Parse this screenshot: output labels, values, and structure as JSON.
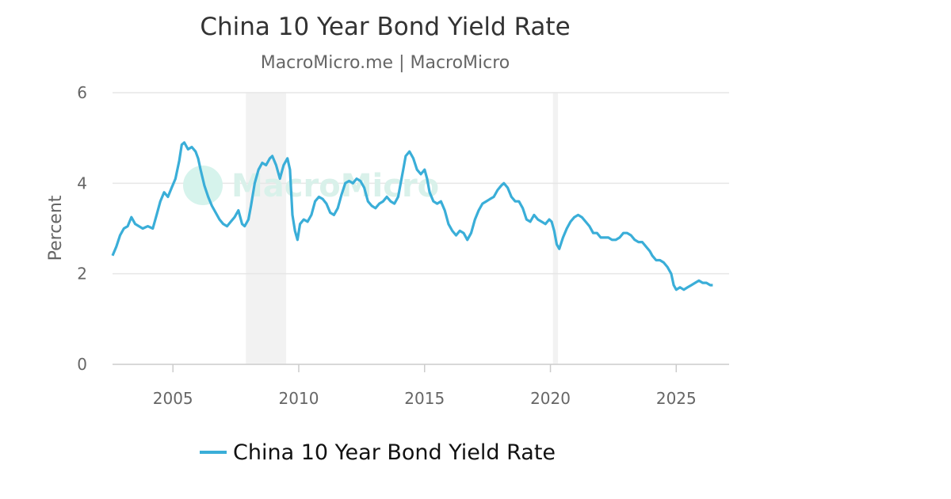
{
  "colors": {
    "series": "#3aaed8",
    "grid": "#e6e6e6",
    "recession": "#f2f2f2",
    "axis_line": "#cccccc",
    "watermark_circle": "#d6f3ec"
  },
  "watermark": {
    "text": "MacroMicro",
    "icon": "macromicro-logo-icon"
  },
  "chart_data": {
    "type": "line",
    "title": "China 10 Year Bond Yield Rate",
    "subtitle": "MacroMicro.me | MacroMicro",
    "xlabel": "",
    "ylabel": "Percent",
    "xlim": [
      2002.6,
      2027.1
    ],
    "ylim": [
      0,
      6
    ],
    "x_ticks": [
      2005,
      2010,
      2015,
      2020,
      2025
    ],
    "y_ticks": [
      0,
      2,
      4,
      6
    ],
    "grid": true,
    "legend_position": "bottom",
    "shaded_periods": [
      [
        2007.9,
        2009.5
      ],
      [
        2020.1,
        2020.3
      ]
    ],
    "series": [
      {
        "name": "China 10 Year Bond Yield Rate",
        "points": [
          [
            2002.6,
            2.4
          ],
          [
            2002.75,
            2.6
          ],
          [
            2002.9,
            2.85
          ],
          [
            2003.05,
            3.0
          ],
          [
            2003.2,
            3.05
          ],
          [
            2003.35,
            3.25
          ],
          [
            2003.5,
            3.1
          ],
          [
            2003.65,
            3.05
          ],
          [
            2003.8,
            3.0
          ],
          [
            2004.0,
            3.05
          ],
          [
            2004.2,
            3.0
          ],
          [
            2004.35,
            3.3
          ],
          [
            2004.5,
            3.6
          ],
          [
            2004.65,
            3.8
          ],
          [
            2004.8,
            3.7
          ],
          [
            2004.95,
            3.9
          ],
          [
            2005.1,
            4.1
          ],
          [
            2005.25,
            4.5
          ],
          [
            2005.35,
            4.85
          ],
          [
            2005.45,
            4.9
          ],
          [
            2005.6,
            4.75
          ],
          [
            2005.75,
            4.8
          ],
          [
            2005.9,
            4.7
          ],
          [
            2006.0,
            4.55
          ],
          [
            2006.1,
            4.3
          ],
          [
            2006.25,
            3.95
          ],
          [
            2006.4,
            3.7
          ],
          [
            2006.55,
            3.5
          ],
          [
            2006.7,
            3.35
          ],
          [
            2006.85,
            3.2
          ],
          [
            2007.0,
            3.1
          ],
          [
            2007.15,
            3.05
          ],
          [
            2007.3,
            3.15
          ],
          [
            2007.45,
            3.25
          ],
          [
            2007.6,
            3.4
          ],
          [
            2007.75,
            3.1
          ],
          [
            2007.85,
            3.05
          ],
          [
            2008.0,
            3.2
          ],
          [
            2008.1,
            3.5
          ],
          [
            2008.25,
            4.0
          ],
          [
            2008.4,
            4.3
          ],
          [
            2008.55,
            4.45
          ],
          [
            2008.7,
            4.4
          ],
          [
            2008.85,
            4.55
          ],
          [
            2008.95,
            4.6
          ],
          [
            2009.1,
            4.4
          ],
          [
            2009.25,
            4.1
          ],
          [
            2009.4,
            4.4
          ],
          [
            2009.55,
            4.55
          ],
          [
            2009.65,
            4.3
          ],
          [
            2009.75,
            3.3
          ],
          [
            2009.85,
            2.95
          ],
          [
            2009.95,
            2.75
          ],
          [
            2010.05,
            3.1
          ],
          [
            2010.2,
            3.2
          ],
          [
            2010.35,
            3.15
          ],
          [
            2010.5,
            3.3
          ],
          [
            2010.65,
            3.6
          ],
          [
            2010.8,
            3.7
          ],
          [
            2010.95,
            3.65
          ],
          [
            2011.1,
            3.55
          ],
          [
            2011.25,
            3.35
          ],
          [
            2011.4,
            3.3
          ],
          [
            2011.55,
            3.45
          ],
          [
            2011.7,
            3.75
          ],
          [
            2011.85,
            4.0
          ],
          [
            2012.0,
            4.05
          ],
          [
            2012.15,
            4.0
          ],
          [
            2012.3,
            4.1
          ],
          [
            2012.45,
            4.05
          ],
          [
            2012.6,
            3.9
          ],
          [
            2012.75,
            3.6
          ],
          [
            2012.9,
            3.5
          ],
          [
            2013.05,
            3.45
          ],
          [
            2013.2,
            3.55
          ],
          [
            2013.35,
            3.6
          ],
          [
            2013.5,
            3.7
          ],
          [
            2013.65,
            3.6
          ],
          [
            2013.8,
            3.55
          ],
          [
            2013.95,
            3.7
          ],
          [
            2014.05,
            4.0
          ],
          [
            2014.15,
            4.3
          ],
          [
            2014.25,
            4.6
          ],
          [
            2014.4,
            4.7
          ],
          [
            2014.55,
            4.55
          ],
          [
            2014.7,
            4.3
          ],
          [
            2014.85,
            4.2
          ],
          [
            2015.0,
            4.3
          ],
          [
            2015.1,
            4.1
          ],
          [
            2015.2,
            3.8
          ],
          [
            2015.35,
            3.6
          ],
          [
            2015.5,
            3.55
          ],
          [
            2015.65,
            3.6
          ],
          [
            2015.8,
            3.4
          ],
          [
            2015.95,
            3.1
          ],
          [
            2016.1,
            2.95
          ],
          [
            2016.25,
            2.85
          ],
          [
            2016.4,
            2.95
          ],
          [
            2016.55,
            2.9
          ],
          [
            2016.7,
            2.75
          ],
          [
            2016.85,
            2.9
          ],
          [
            2017.0,
            3.2
          ],
          [
            2017.15,
            3.4
          ],
          [
            2017.3,
            3.55
          ],
          [
            2017.45,
            3.6
          ],
          [
            2017.6,
            3.65
          ],
          [
            2017.75,
            3.7
          ],
          [
            2017.9,
            3.85
          ],
          [
            2018.05,
            3.95
          ],
          [
            2018.15,
            4.0
          ],
          [
            2018.3,
            3.9
          ],
          [
            2018.45,
            3.7
          ],
          [
            2018.6,
            3.6
          ],
          [
            2018.75,
            3.6
          ],
          [
            2018.9,
            3.45
          ],
          [
            2019.05,
            3.2
          ],
          [
            2019.2,
            3.15
          ],
          [
            2019.35,
            3.3
          ],
          [
            2019.5,
            3.2
          ],
          [
            2019.65,
            3.15
          ],
          [
            2019.8,
            3.1
          ],
          [
            2019.95,
            3.2
          ],
          [
            2020.05,
            3.15
          ],
          [
            2020.15,
            2.95
          ],
          [
            2020.25,
            2.65
          ],
          [
            2020.35,
            2.55
          ],
          [
            2020.5,
            2.8
          ],
          [
            2020.65,
            3.0
          ],
          [
            2020.8,
            3.15
          ],
          [
            2020.95,
            3.25
          ],
          [
            2021.1,
            3.3
          ],
          [
            2021.25,
            3.25
          ],
          [
            2021.4,
            3.15
          ],
          [
            2021.55,
            3.05
          ],
          [
            2021.7,
            2.9
          ],
          [
            2021.85,
            2.9
          ],
          [
            2022.0,
            2.8
          ],
          [
            2022.15,
            2.8
          ],
          [
            2022.3,
            2.8
          ],
          [
            2022.45,
            2.75
          ],
          [
            2022.6,
            2.75
          ],
          [
            2022.75,
            2.8
          ],
          [
            2022.9,
            2.9
          ],
          [
            2023.05,
            2.9
          ],
          [
            2023.2,
            2.85
          ],
          [
            2023.35,
            2.75
          ],
          [
            2023.5,
            2.7
          ],
          [
            2023.65,
            2.7
          ],
          [
            2023.8,
            2.6
          ],
          [
            2023.95,
            2.5
          ],
          [
            2024.05,
            2.4
          ],
          [
            2024.2,
            2.3
          ],
          [
            2024.35,
            2.3
          ],
          [
            2024.5,
            2.25
          ],
          [
            2024.65,
            2.15
          ],
          [
            2024.8,
            2.0
          ],
          [
            2024.9,
            1.75
          ],
          [
            2025.0,
            1.65
          ],
          [
            2025.15,
            1.7
          ],
          [
            2025.3,
            1.65
          ],
          [
            2025.45,
            1.7
          ],
          [
            2025.6,
            1.75
          ],
          [
            2025.75,
            1.8
          ],
          [
            2025.9,
            1.85
          ],
          [
            2026.05,
            1.8
          ],
          [
            2026.2,
            1.8
          ],
          [
            2026.35,
            1.75
          ],
          [
            2026.45,
            1.75
          ]
        ]
      }
    ]
  }
}
